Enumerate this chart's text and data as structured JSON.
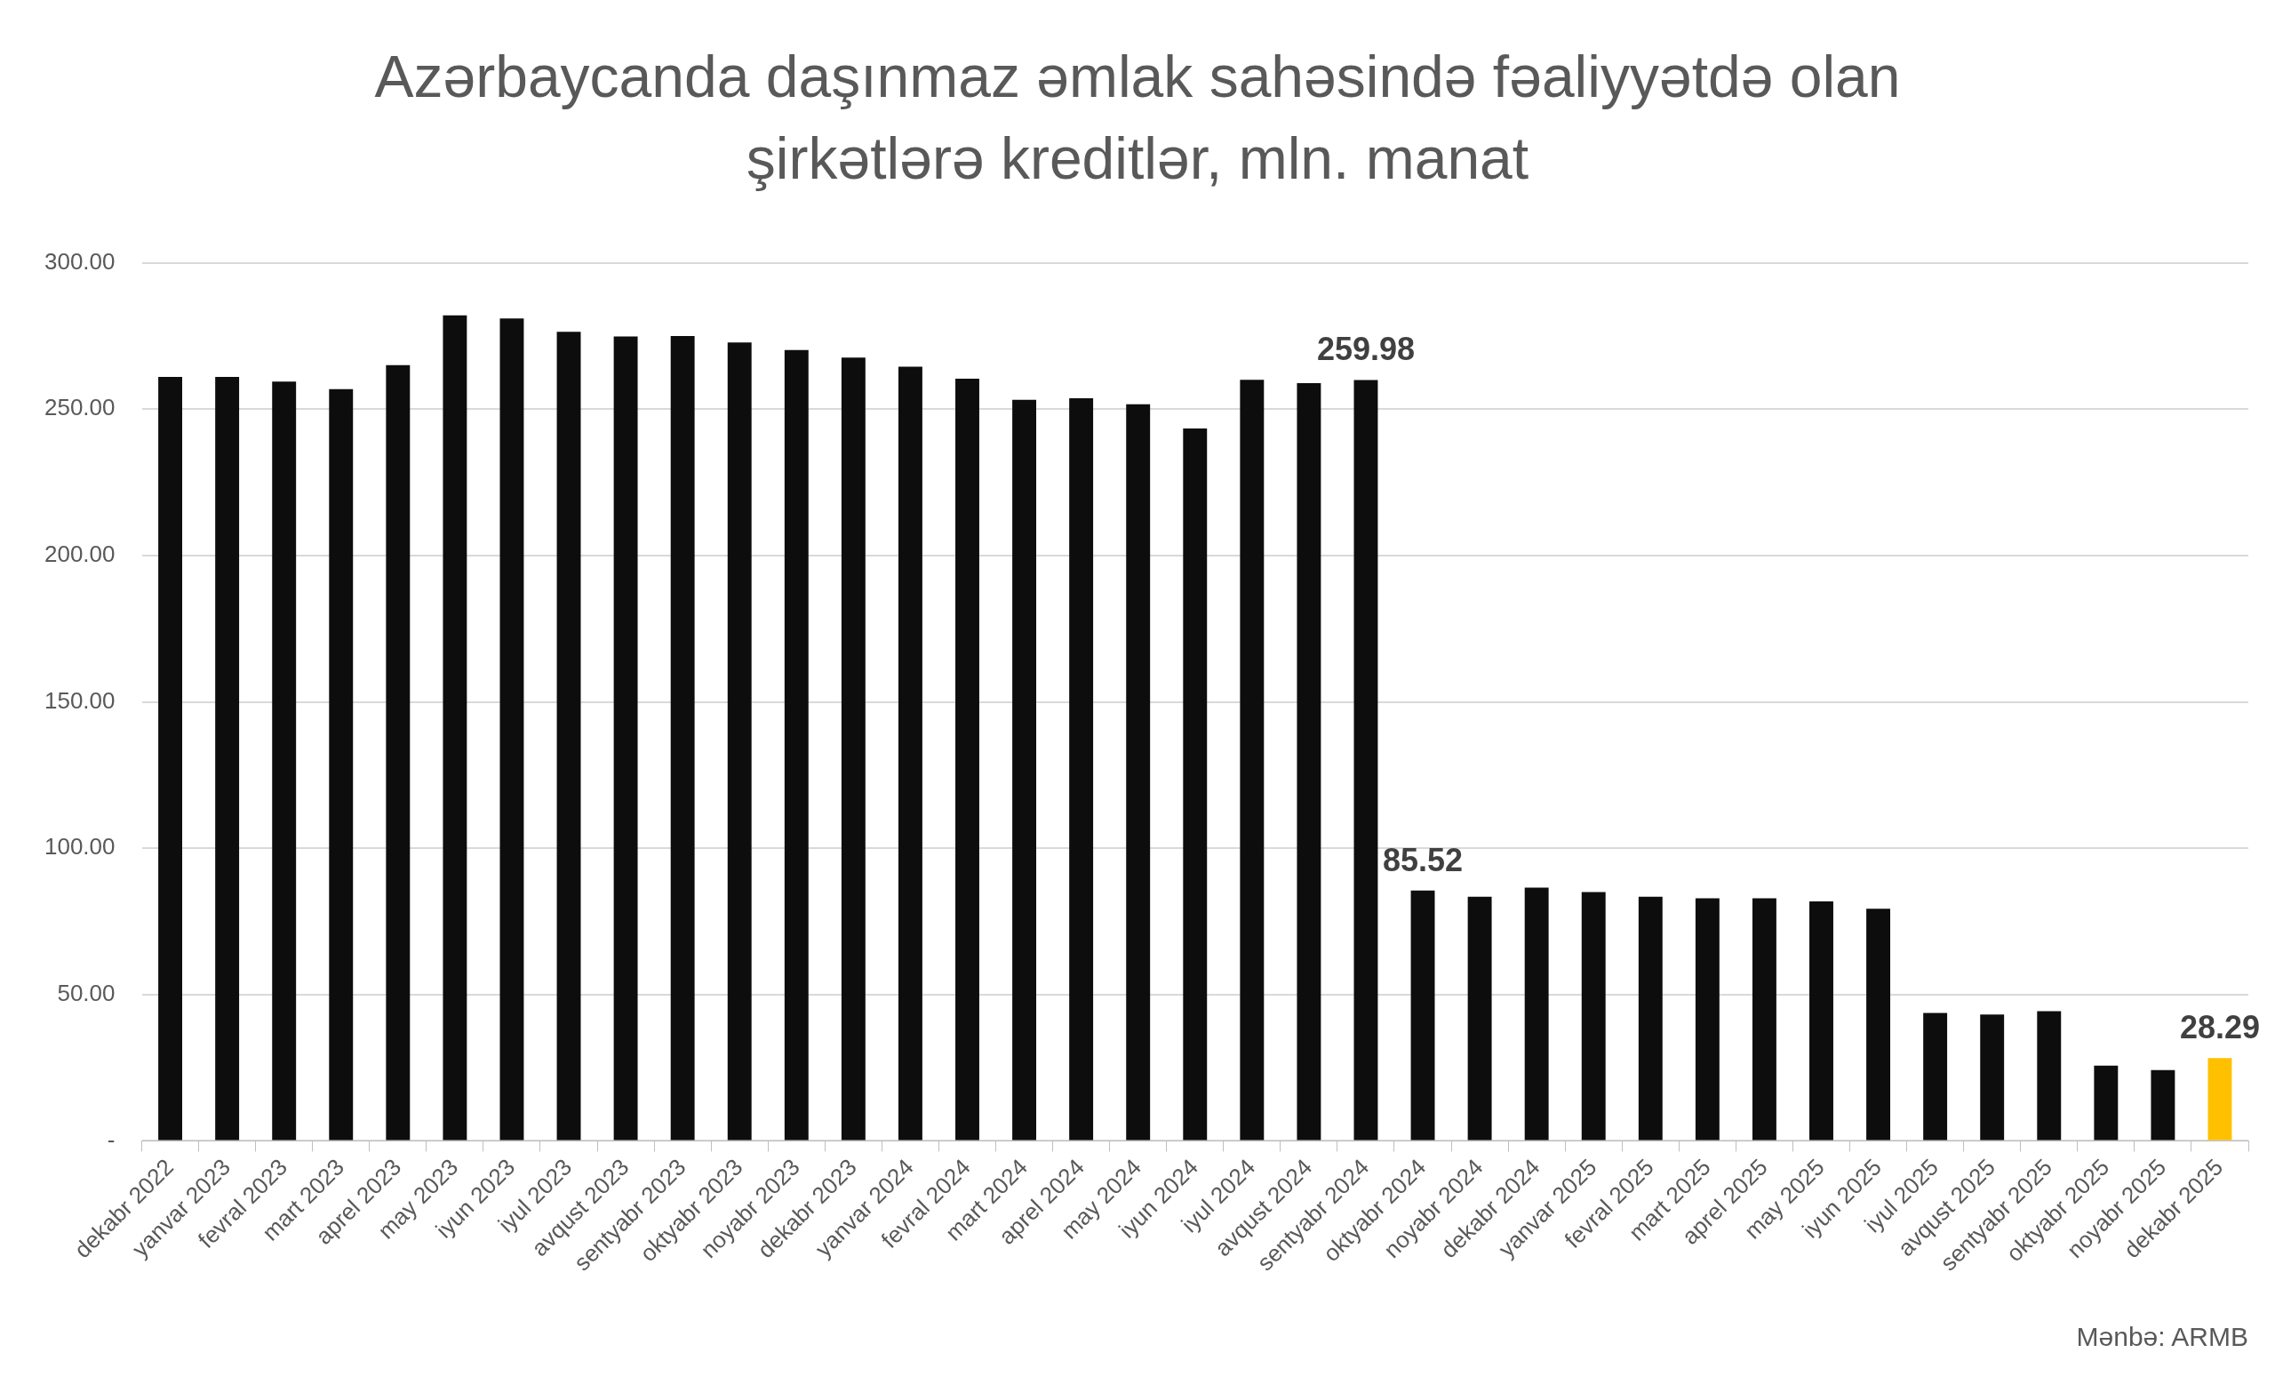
{
  "chart_data": {
    "type": "bar",
    "title": "Azərbaycanda daşınmaz əmlak sahəsində fəaliyyətdə olan şirkətlərə kreditlər, mln. manat",
    "categories": [
      "dekabr 2022",
      "yanvar 2023",
      "fevral 2023",
      "mart 2023",
      "aprel 2023",
      "may 2023",
      "iyun 2023",
      "iyul 2023",
      "avqust 2023",
      "sentyabr 2023",
      "oktyabr 2023",
      "noyabr 2023",
      "dekabr 2023",
      "yanvar 2024",
      "fevral 2024",
      "mart 2024",
      "aprel 2024",
      "may 2024",
      "iyun 2024",
      "iyul 2024",
      "avqust 2024",
      "sentyabr 2024",
      "oktyabr 2024",
      "noyabr 2024",
      "dekabr 2024",
      "yanvar 2025",
      "fevral 2025",
      "mart 2025",
      "aprel 2025",
      "may 2025",
      "iyun 2025",
      "iyul 2025",
      "avqust 2025",
      "sentyabr 2025",
      "oktyabr 2025",
      "noyabr 2025",
      "dekabr 2025"
    ],
    "values": [
      261,
      261,
      259.4,
      256.8,
      265,
      282,
      281,
      276.4,
      274.8,
      275,
      272.8,
      270.2,
      267.6,
      264.5,
      260.4,
      253.2,
      253.7,
      251.7,
      243.4,
      260,
      258.9,
      259.98,
      85.52,
      83.4,
      86.5,
      85,
      83.4,
      82.9,
      82.9,
      81.8,
      79.3,
      43.7,
      43.2,
      44.3,
      25.7,
      24.2,
      28.29
    ],
    "value_labels": [
      null,
      null,
      null,
      null,
      null,
      null,
      null,
      null,
      null,
      null,
      null,
      null,
      null,
      null,
      null,
      null,
      null,
      null,
      null,
      null,
      null,
      "259.98",
      "85.52",
      null,
      null,
      null,
      null,
      null,
      null,
      null,
      null,
      null,
      null,
      null,
      null,
      null,
      "28.29"
    ],
    "colors": [
      "#0d0d0d",
      "#0d0d0d",
      "#0d0d0d",
      "#0d0d0d",
      "#0d0d0d",
      "#0d0d0d",
      "#0d0d0d",
      "#0d0d0d",
      "#0d0d0d",
      "#0d0d0d",
      "#0d0d0d",
      "#0d0d0d",
      "#0d0d0d",
      "#0d0d0d",
      "#0d0d0d",
      "#0d0d0d",
      "#0d0d0d",
      "#0d0d0d",
      "#0d0d0d",
      "#0d0d0d",
      "#0d0d0d",
      "#0d0d0d",
      "#0d0d0d",
      "#0d0d0d",
      "#0d0d0d",
      "#0d0d0d",
      "#0d0d0d",
      "#0d0d0d",
      "#0d0d0d",
      "#0d0d0d",
      "#0d0d0d",
      "#0d0d0d",
      "#0d0d0d",
      "#0d0d0d",
      "#0d0d0d",
      "#0d0d0d",
      "#ffc000"
    ],
    "ylim": [
      0,
      300
    ],
    "yticks": [
      {
        "value": 0,
        "label": "-"
      },
      {
        "value": 50,
        "label": "50.00"
      },
      {
        "value": 100,
        "label": "100.00"
      },
      {
        "value": 150,
        "label": "150.00"
      },
      {
        "value": 200,
        "label": "200.00"
      },
      {
        "value": 250,
        "label": "250.00"
      },
      {
        "value": 300,
        "label": "300.00"
      }
    ],
    "grid": "y",
    "legend": false,
    "annotations": [
      "Mənbə: ARMB"
    ]
  }
}
